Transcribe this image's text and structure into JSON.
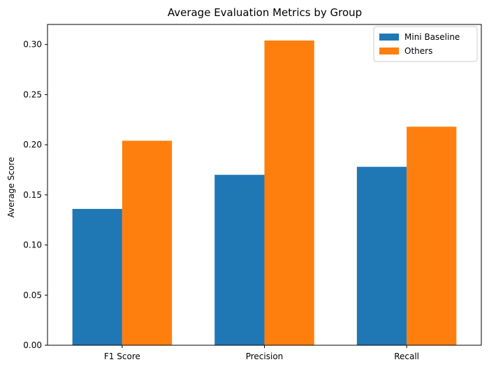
{
  "chart_data": {
    "type": "bar",
    "title": "Average Evaluation Metrics by Group",
    "xlabel": "",
    "ylabel": "Average Score",
    "categories": [
      "F1 Score",
      "Precision",
      "Recall"
    ],
    "series": [
      {
        "name": "Mini Baseline",
        "color": "#1f77b4",
        "values": [
          0.136,
          0.17,
          0.178
        ]
      },
      {
        "name": "Others",
        "color": "#ff7f0e",
        "values": [
          0.204,
          0.304,
          0.218
        ]
      }
    ],
    "ylim": [
      0,
      0.32
    ],
    "yticks": [
      "0.00",
      "0.05",
      "0.10",
      "0.15",
      "0.20",
      "0.25",
      "0.30"
    ],
    "grid": false,
    "legend_position": "top-right"
  }
}
